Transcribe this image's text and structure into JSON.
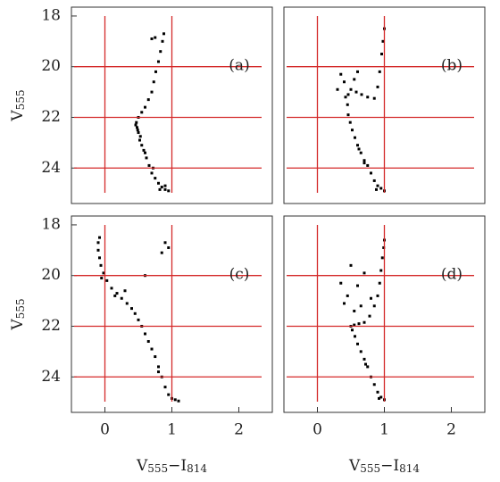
{
  "chart_data": [
    {
      "type": "scatter",
      "label": "(a)",
      "color": "#000000",
      "line_color": "#d42a2a",
      "xlim": [
        -0.5,
        2.5
      ],
      "ylim": [
        25.4,
        17.65
      ],
      "yticks": [
        18,
        20,
        22,
        24
      ],
      "ylabel": [
        "V",
        "555"
      ],
      "vlines": [
        0,
        1
      ],
      "hlines": [
        20,
        22,
        24
      ],
      "x": [
        0.95,
        0.9,
        0.85,
        0.8,
        0.75,
        0.7,
        0.66,
        0.62,
        0.58,
        0.55,
        0.52,
        0.5,
        0.48,
        0.47,
        0.5,
        0.55,
        0.6,
        0.65,
        0.7,
        0.73,
        0.76,
        0.8,
        0.83,
        0.86,
        0.88,
        0.7,
        0.75,
        0.9,
        0.82,
        0.72,
        0.6,
        0.53,
        0.46,
        0.49
      ],
      "y": [
        24.9,
        24.85,
        24.75,
        24.6,
        24.4,
        24.2,
        23.9,
        23.6,
        23.3,
        23.1,
        22.9,
        22.6,
        22.4,
        22.2,
        22.0,
        21.8,
        21.6,
        21.3,
        21.0,
        20.6,
        20.2,
        19.8,
        19.4,
        19.0,
        18.7,
        18.9,
        18.85,
        24.7,
        24.85,
        24.0,
        23.4,
        22.75,
        22.3,
        22.5
      ]
    },
    {
      "type": "scatter",
      "label": "(b)",
      "color": "#000000",
      "line_color": "#d42a2a",
      "xlim": [
        -0.5,
        2.5
      ],
      "ylim": [
        25.4,
        17.65
      ],
      "vlines": [
        0,
        1
      ],
      "hlines": [
        20,
        22,
        24
      ],
      "x": [
        1.0,
        0.95,
        0.9,
        0.85,
        0.8,
        0.75,
        0.7,
        0.65,
        0.6,
        0.56,
        0.52,
        0.49,
        0.46,
        0.45,
        0.46,
        0.5,
        0.58,
        0.66,
        0.75,
        0.85,
        0.9,
        0.93,
        0.96,
        0.98,
        1.0,
        0.35,
        0.4,
        0.3,
        0.55,
        0.6,
        0.42,
        0.88,
        0.7,
        0.62
      ],
      "y": [
        24.9,
        24.8,
        24.7,
        24.5,
        24.2,
        23.9,
        23.7,
        23.4,
        23.1,
        22.8,
        22.5,
        22.2,
        21.9,
        21.5,
        21.1,
        20.9,
        21.0,
        21.1,
        21.2,
        21.25,
        20.8,
        20.2,
        19.5,
        19.0,
        18.5,
        20.3,
        20.6,
        20.9,
        20.5,
        20.2,
        21.2,
        24.85,
        23.8,
        23.25
      ]
    },
    {
      "type": "scatter",
      "label": "(c)",
      "color": "#000000",
      "line_color": "#d42a2a",
      "xlim": [
        -0.5,
        2.5
      ],
      "ylim": [
        25.4,
        17.65
      ],
      "xticks": [
        0,
        1,
        2
      ],
      "yticks": [
        18,
        20,
        22,
        24
      ],
      "xlabel": [
        "V",
        "555",
        "−I",
        "814"
      ],
      "ylabel": [
        "V",
        "555"
      ],
      "vlines": [
        0,
        1
      ],
      "hlines": [
        20,
        22,
        24
      ],
      "x": [
        1.1,
        1.0,
        0.95,
        0.9,
        0.85,
        0.8,
        0.75,
        0.7,
        0.65,
        0.6,
        0.55,
        0.5,
        0.45,
        0.4,
        0.33,
        0.25,
        0.18,
        0.1,
        0.03,
        -0.02,
        -0.06,
        -0.08,
        -0.1,
        -0.1,
        -0.08,
        0.9,
        0.95,
        0.85,
        0.6,
        0.3,
        -0.05,
        0.15,
        1.05,
        0.8
      ],
      "y": [
        24.95,
        24.85,
        24.7,
        24.4,
        24.0,
        23.6,
        23.2,
        22.9,
        22.6,
        22.3,
        22.0,
        21.75,
        21.5,
        21.3,
        21.1,
        20.9,
        20.7,
        20.5,
        20.2,
        19.9,
        19.6,
        19.3,
        19.0,
        18.7,
        18.5,
        18.7,
        18.9,
        19.1,
        20.0,
        20.6,
        20.1,
        20.8,
        24.9,
        23.8
      ]
    },
    {
      "type": "scatter",
      "label": "(d)",
      "color": "#000000",
      "line_color": "#d42a2a",
      "xlim": [
        -0.5,
        2.5
      ],
      "ylim": [
        25.4,
        17.65
      ],
      "xticks": [
        0,
        1,
        2
      ],
      "xlabel": [
        "V",
        "555",
        "−I",
        "814"
      ],
      "vlines": [
        0,
        1
      ],
      "hlines": [
        20,
        22,
        24
      ],
      "x": [
        1.0,
        0.95,
        0.9,
        0.85,
        0.8,
        0.75,
        0.7,
        0.65,
        0.6,
        0.56,
        0.52,
        0.5,
        0.55,
        0.62,
        0.7,
        0.78,
        0.85,
        0.9,
        0.93,
        0.95,
        0.97,
        0.99,
        1.0,
        0.35,
        0.45,
        0.5,
        0.6,
        0.7,
        0.4,
        0.55,
        0.8,
        0.65,
        0.92,
        0.72
      ],
      "y": [
        24.9,
        24.8,
        24.6,
        24.3,
        24.0,
        23.6,
        23.3,
        23.0,
        22.7,
        22.4,
        22.15,
        22.0,
        21.95,
        21.9,
        21.85,
        21.6,
        21.2,
        20.8,
        20.3,
        19.8,
        19.3,
        18.9,
        18.6,
        20.3,
        20.8,
        19.6,
        20.4,
        19.9,
        21.1,
        21.4,
        20.9,
        21.2,
        24.85,
        23.5
      ]
    }
  ]
}
